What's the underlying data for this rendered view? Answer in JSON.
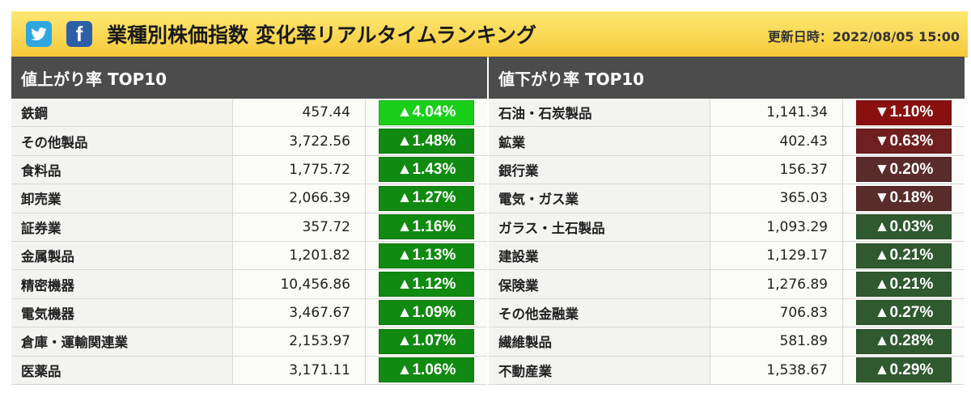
{
  "header": {
    "title": "業種別株価指数 変化率リアルタイムランキング",
    "updated": "更新日時：2022/08/05 15:00",
    "twitter_icon": "twitter-icon",
    "facebook_icon": "facebook-icon",
    "facebook_glyph": "f"
  },
  "gainers": {
    "heading": "値上がり率 TOP10",
    "rows": [
      {
        "name": "鉄鋼",
        "value": "457.44",
        "change": "▲4.04%",
        "color": "#19cf19"
      },
      {
        "name": "その他製品",
        "value": "3,722.56",
        "change": "▲1.48%",
        "color": "#118a11"
      },
      {
        "name": "食料品",
        "value": "1,775.72",
        "change": "▲1.43%",
        "color": "#118a11"
      },
      {
        "name": "卸売業",
        "value": "2,066.39",
        "change": "▲1.27%",
        "color": "#118a11"
      },
      {
        "name": "証券業",
        "value": "357.72",
        "change": "▲1.16%",
        "color": "#118a11"
      },
      {
        "name": "金属製品",
        "value": "1,201.82",
        "change": "▲1.13%",
        "color": "#118a11"
      },
      {
        "name": "精密機器",
        "value": "10,456.86",
        "change": "▲1.12%",
        "color": "#118a11"
      },
      {
        "name": "電気機器",
        "value": "3,467.67",
        "change": "▲1.09%",
        "color": "#118a11"
      },
      {
        "name": "倉庫・運輸関連業",
        "value": "2,153.97",
        "change": "▲1.07%",
        "color": "#118a11"
      },
      {
        "name": "医薬品",
        "value": "3,171.11",
        "change": "▲1.06%",
        "color": "#118a11"
      }
    ]
  },
  "losers": {
    "heading": "値下がり率 TOP10",
    "rows": [
      {
        "name": "石油・石炭製品",
        "value": "1,141.34",
        "change": "▼1.10%",
        "color": "#8a0f0f"
      },
      {
        "name": "鉱業",
        "value": "402.43",
        "change": "▼0.63%",
        "color": "#6f1f1f"
      },
      {
        "name": "銀行業",
        "value": "156.37",
        "change": "▼0.20%",
        "color": "#5a2b2b"
      },
      {
        "name": "電気・ガス業",
        "value": "365.03",
        "change": "▼0.18%",
        "color": "#5a2b2b"
      },
      {
        "name": "ガラス・土石製品",
        "value": "1,093.29",
        "change": "▲0.03%",
        "color": "#2f5a2f"
      },
      {
        "name": "建設業",
        "value": "1,129.17",
        "change": "▲0.21%",
        "color": "#2f5a2f"
      },
      {
        "name": "保険業",
        "value": "1,276.89",
        "change": "▲0.21%",
        "color": "#2f5a2f"
      },
      {
        "name": "その他金融業",
        "value": "706.83",
        "change": "▲0.27%",
        "color": "#2f5a2f"
      },
      {
        "name": "繊維製品",
        "value": "581.89",
        "change": "▲0.28%",
        "color": "#2f5a2f"
      },
      {
        "name": "不動産業",
        "value": "1,538.67",
        "change": "▲0.29%",
        "color": "#2f5a2f"
      }
    ]
  }
}
